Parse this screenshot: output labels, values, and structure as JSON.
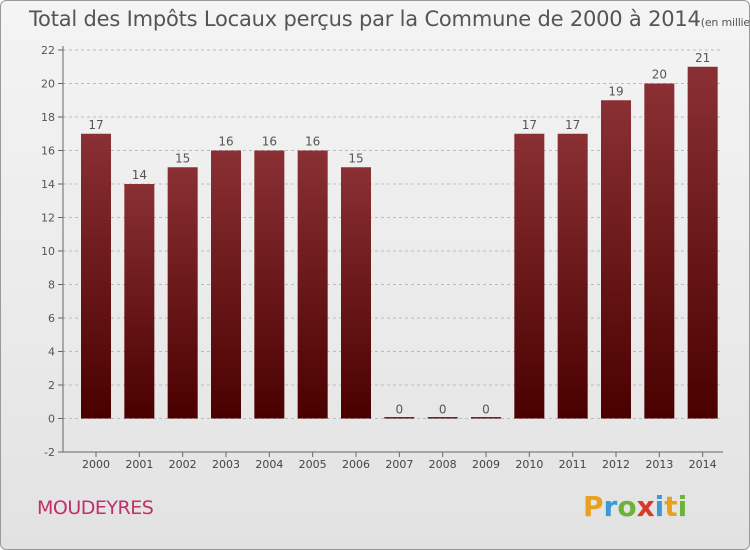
{
  "title": {
    "main": "Total des Impôts Locaux perçus par la Commune de 2000 à 2014",
    "unit": "(en milliers d'€)"
  },
  "commune": "MOUDEYRES",
  "logo": {
    "text": "Proxiti",
    "letters": [
      "P",
      "r",
      "o",
      "x",
      "i",
      "t",
      "i"
    ],
    "colors": [
      "#e8a020",
      "#3a9ad9",
      "#6bb33a",
      "#d83a2a",
      "#3a9ad9",
      "#e8a020",
      "#6bb33a"
    ]
  },
  "colors": {
    "bar_top": "#8a3034",
    "bar_bottom": "#4a0000",
    "axis": "#666666",
    "grid": "#bbbbbb"
  },
  "chart_data": {
    "type": "bar",
    "categories": [
      "2000",
      "2001",
      "2002",
      "2003",
      "2004",
      "2005",
      "2006",
      "2007",
      "2008",
      "2009",
      "2010",
      "2011",
      "2012",
      "2013",
      "2014"
    ],
    "values": [
      17,
      14,
      15,
      16,
      16,
      16,
      15,
      0,
      0,
      0,
      17,
      17,
      19,
      20,
      21
    ],
    "value_labels": [
      "17",
      "14",
      "15",
      "16",
      "16",
      "16",
      "15",
      "0",
      "0",
      "0",
      "17",
      "17",
      "19",
      "20",
      "21"
    ],
    "yticks": [
      "-2",
      "0",
      "2",
      "4",
      "6",
      "8",
      "10",
      "12",
      "14",
      "16",
      "18",
      "20",
      "22"
    ],
    "ylim": [
      -2,
      22
    ],
    "grid": true,
    "title": "Total des Impôts Locaux perçus par la Commune de 2000 à 2014",
    "ylabel": "",
    "xlabel": ""
  }
}
